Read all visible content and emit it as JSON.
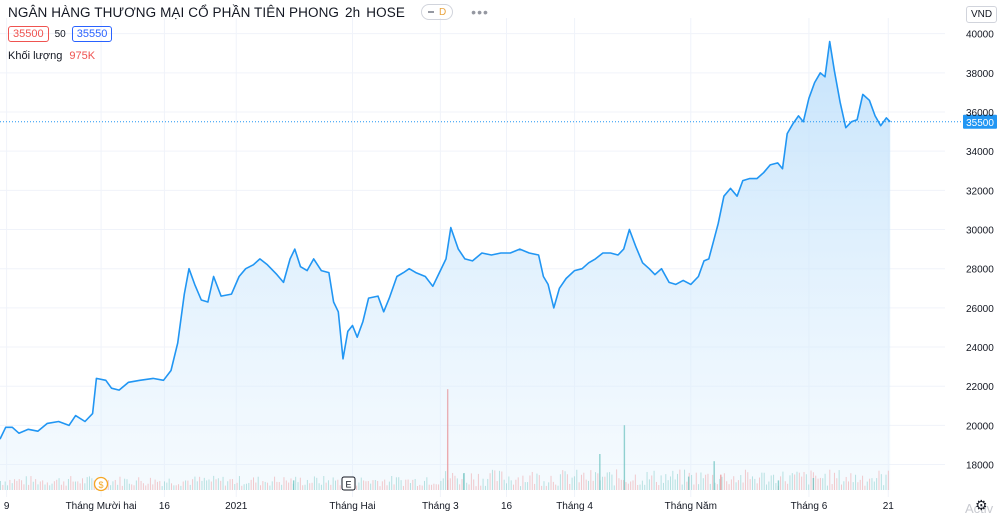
{
  "header": {
    "symbol_title": "NGÂN HÀNG THƯƠNG MẠI CỔ PHẦN TIÊN PHONG",
    "interval": "2h",
    "exchange": "HOSE",
    "badge": "D",
    "bid": "35500",
    "spread": "50",
    "ask": "35550",
    "volume_label": "Khối lượng",
    "volume_value": "975K",
    "currency": "VND"
  },
  "watermark_text": "Activ",
  "colors": {
    "line": "#2196f3",
    "area_top": "#bbdefb",
    "grid": "#f0f3fa",
    "last_price_label": "#2196f3",
    "volume_up": "#26a69a",
    "volume_down": "#ef5350"
  },
  "chart_data": {
    "type": "area",
    "title": "NGÂN HÀNG THƯƠNG MẠI CỔ PHẦN TIÊN PHONG",
    "xlabel": "",
    "ylabel": "",
    "ylim": [
      16700,
      40800
    ],
    "xlim": [
      0,
      100
    ],
    "grid": true,
    "y_ticks": [
      18000,
      20000,
      22000,
      24000,
      26000,
      28000,
      30000,
      32000,
      34000,
      36000,
      38000,
      40000
    ],
    "x_ticks": [
      {
        "x": 0.7,
        "label": "9"
      },
      {
        "x": 10.7,
        "label": "Tháng Mười hai"
      },
      {
        "x": 17.4,
        "label": "16"
      },
      {
        "x": 25.0,
        "label": "2021"
      },
      {
        "x": 37.3,
        "label": "Tháng Hai"
      },
      {
        "x": 46.6,
        "label": "Tháng 3"
      },
      {
        "x": 53.6,
        "label": "16"
      },
      {
        "x": 60.8,
        "label": "Tháng 4"
      },
      {
        "x": 73.1,
        "label": "Tháng Năm"
      },
      {
        "x": 85.6,
        "label": "Tháng 6"
      },
      {
        "x": 94.0,
        "label": "21"
      }
    ],
    "last_price": 35500,
    "series": [
      {
        "values": [
          [
            0.0,
            19300
          ],
          [
            0.6,
            19900
          ],
          [
            1.3,
            19900
          ],
          [
            2.0,
            19600
          ],
          [
            3.0,
            19800
          ],
          [
            4.0,
            19700
          ],
          [
            5.0,
            20100
          ],
          [
            6.2,
            20200
          ],
          [
            7.3,
            20000
          ],
          [
            8.0,
            20500
          ],
          [
            9.0,
            20200
          ],
          [
            9.8,
            20600
          ],
          [
            10.2,
            22400
          ],
          [
            11.2,
            22300
          ],
          [
            11.8,
            21900
          ],
          [
            12.6,
            21800
          ],
          [
            13.6,
            22200
          ],
          [
            14.8,
            22300
          ],
          [
            16.2,
            22400
          ],
          [
            17.3,
            22300
          ],
          [
            18.1,
            22800
          ],
          [
            18.8,
            24200
          ],
          [
            19.5,
            26700
          ],
          [
            20.0,
            28000
          ],
          [
            20.6,
            27200
          ],
          [
            21.3,
            26400
          ],
          [
            22.0,
            26300
          ],
          [
            22.6,
            27600
          ],
          [
            23.4,
            26600
          ],
          [
            24.5,
            26700
          ],
          [
            25.3,
            27600
          ],
          [
            26.0,
            28000
          ],
          [
            26.8,
            28200
          ],
          [
            27.5,
            28500
          ],
          [
            28.3,
            28200
          ],
          [
            29.3,
            27700
          ],
          [
            30.0,
            27300
          ],
          [
            30.7,
            28500
          ],
          [
            31.2,
            29000
          ],
          [
            31.8,
            28100
          ],
          [
            32.5,
            27900
          ],
          [
            33.2,
            28500
          ],
          [
            34.0,
            27900
          ],
          [
            34.8,
            27800
          ],
          [
            35.3,
            26300
          ],
          [
            35.8,
            25800
          ],
          [
            36.3,
            23400
          ],
          [
            36.8,
            24800
          ],
          [
            37.3,
            25100
          ],
          [
            37.8,
            24500
          ],
          [
            38.4,
            25300
          ],
          [
            39.0,
            26500
          ],
          [
            40.0,
            26600
          ],
          [
            40.6,
            25800
          ],
          [
            41.2,
            26500
          ],
          [
            42.0,
            27600
          ],
          [
            42.7,
            27800
          ],
          [
            43.3,
            28000
          ],
          [
            44.0,
            27800
          ],
          [
            45.0,
            27600
          ],
          [
            45.8,
            27100
          ],
          [
            46.5,
            27800
          ],
          [
            47.2,
            28500
          ],
          [
            47.7,
            30100
          ],
          [
            48.5,
            29000
          ],
          [
            49.2,
            28500
          ],
          [
            50.0,
            28400
          ],
          [
            51.0,
            28800
          ],
          [
            52.0,
            28700
          ],
          [
            53.0,
            28800
          ],
          [
            54.0,
            28800
          ],
          [
            55.0,
            29000
          ],
          [
            56.0,
            28800
          ],
          [
            57.0,
            28700
          ],
          [
            57.5,
            27600
          ],
          [
            58.0,
            27200
          ],
          [
            58.6,
            26000
          ],
          [
            59.2,
            27000
          ],
          [
            59.9,
            27500
          ],
          [
            60.8,
            27900
          ],
          [
            61.6,
            28000
          ],
          [
            62.3,
            28300
          ],
          [
            63.0,
            28500
          ],
          [
            63.8,
            28800
          ],
          [
            64.6,
            28800
          ],
          [
            65.4,
            28700
          ],
          [
            66.0,
            29000
          ],
          [
            66.6,
            30000
          ],
          [
            67.3,
            29100
          ],
          [
            68.0,
            28300
          ],
          [
            68.7,
            28000
          ],
          [
            69.3,
            27700
          ],
          [
            70.0,
            28000
          ],
          [
            70.8,
            27300
          ],
          [
            71.5,
            27200
          ],
          [
            72.3,
            27400
          ],
          [
            73.1,
            27200
          ],
          [
            73.9,
            27600
          ],
          [
            74.5,
            28400
          ],
          [
            75.0,
            28500
          ],
          [
            75.5,
            29400
          ],
          [
            76.0,
            30300
          ],
          [
            76.6,
            31700
          ],
          [
            77.3,
            32100
          ],
          [
            78.0,
            31700
          ],
          [
            78.6,
            32500
          ],
          [
            79.3,
            32600
          ],
          [
            80.1,
            32600
          ],
          [
            80.8,
            32900
          ],
          [
            81.5,
            33300
          ],
          [
            82.3,
            33400
          ],
          [
            82.8,
            33100
          ],
          [
            83.3,
            34900
          ],
          [
            83.9,
            35400
          ],
          [
            84.5,
            35800
          ],
          [
            85.0,
            35500
          ],
          [
            85.6,
            36700
          ],
          [
            86.2,
            37500
          ],
          [
            86.8,
            38000
          ],
          [
            87.3,
            37800
          ],
          [
            87.8,
            39600
          ],
          [
            88.3,
            38100
          ],
          [
            88.9,
            36500
          ],
          [
            89.5,
            35200
          ],
          [
            90.1,
            35500
          ],
          [
            90.7,
            35600
          ],
          [
            91.3,
            36900
          ],
          [
            92.0,
            36600
          ],
          [
            92.6,
            35800
          ],
          [
            93.2,
            35300
          ],
          [
            93.8,
            35700
          ],
          [
            94.2,
            35500
          ]
        ]
      }
    ],
    "volume": {
      "bars": [
        [
          47.3,
          2100,
          "down"
        ],
        [
          66.0,
          1350,
          "up"
        ],
        [
          63.4,
          750,
          "up"
        ],
        [
          75.5,
          600,
          "up"
        ],
        [
          49.0,
          350,
          "up"
        ],
        [
          76.2,
          320,
          "down"
        ],
        [
          31.0,
          200,
          "up"
        ],
        [
          86.0,
          250,
          "up"
        ],
        [
          72.8,
          280,
          "up"
        ],
        [
          82.3,
          200,
          "up"
        ]
      ]
    }
  }
}
